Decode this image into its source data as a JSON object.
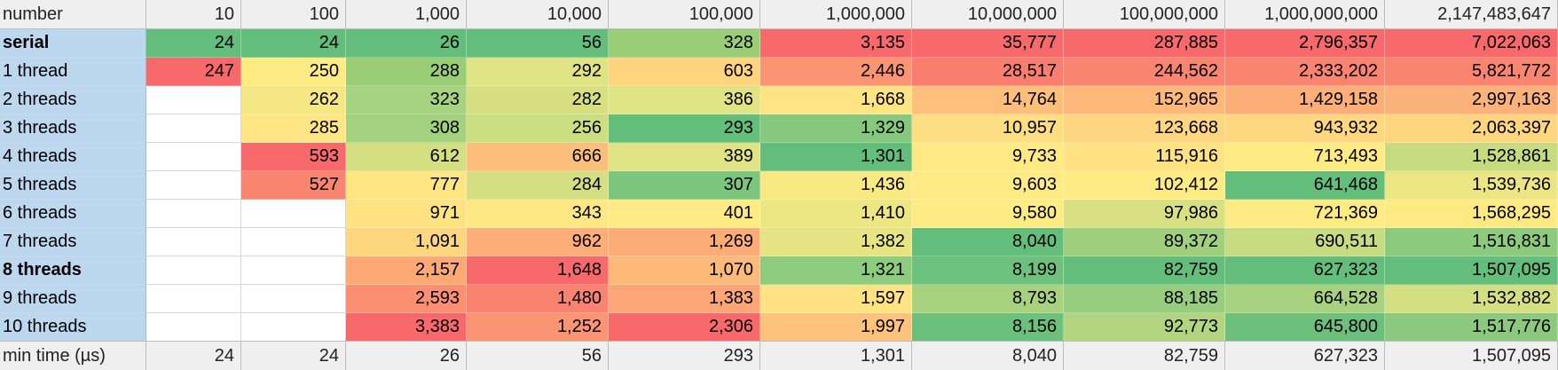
{
  "table": {
    "header_label": "number",
    "columns": [
      "10",
      "100",
      "1,000",
      "10,000",
      "100,000",
      "1,000,000",
      "10,000,000",
      "100,000,000",
      "1,000,000,000",
      "2,147,483,647"
    ],
    "rows": [
      {
        "label": "serial",
        "bold": true,
        "values": [
          "24",
          "24",
          "26",
          "56",
          "328",
          "3,135",
          "35,777",
          "287,885",
          "2,796,357",
          "7,022,063"
        ],
        "colors": [
          "#63BE7B",
          "#63BE7B",
          "#63BE7B",
          "#63BE7B",
          "#9ACE76",
          "#F8696B",
          "#F8696B",
          "#F8696B",
          "#F8696B",
          "#F8696B"
        ]
      },
      {
        "label": "1 thread",
        "bold": false,
        "values": [
          "247",
          "250",
          "288",
          "292",
          "603",
          "2,446",
          "28,517",
          "244,562",
          "2,333,202",
          "5,821,772"
        ],
        "colors": [
          "#F8696B",
          "#FFEB84",
          "#9ACE76",
          "#E0E383",
          "#FFD47F",
          "#FA9473",
          "#F97E6F",
          "#F98570",
          "#F98570",
          "#F98570"
        ]
      },
      {
        "label": "2 threads",
        "bold": false,
        "values": [
          "",
          "262",
          "323",
          "282",
          "386",
          "1,668",
          "14,764",
          "152,965",
          "1,429,158",
          "2,997,163"
        ],
        "colors": [
          "#FFFFFF",
          "#F5E783",
          "#A7D27F",
          "#D7E081",
          "#E0E383",
          "#FFE483",
          "#FDBF7B",
          "#FDB87A",
          "#FCAF78",
          "#FBB27A"
        ]
      },
      {
        "label": "3 threads",
        "bold": false,
        "values": [
          "",
          "285",
          "308",
          "256",
          "293",
          "1,329",
          "10,957",
          "123,668",
          "943,932",
          "2,063,397"
        ],
        "colors": [
          "#FFFFFF",
          "#FFE583",
          "#A3D17E",
          "#CDDD81",
          "#63BE7B",
          "#86C97E",
          "#FEDE82",
          "#FED580",
          "#FED780",
          "#FFD680"
        ]
      },
      {
        "label": "4 threads",
        "bold": false,
        "values": [
          "",
          "593",
          "612",
          "666",
          "389",
          "1,301",
          "9,733",
          "115,916",
          "713,493",
          "1,528,861"
        ],
        "colors": [
          "#FFFFFF",
          "#F8696B",
          "#D3DF81",
          "#FCBF7B",
          "#DFE383",
          "#63BE7B",
          "#FFE984",
          "#FFE282",
          "#FFEB84",
          "#C6DB80"
        ]
      },
      {
        "label": "5 threads",
        "bold": false,
        "values": [
          "",
          "527",
          "777",
          "284",
          "307",
          "1,436",
          "9,603",
          "102,412",
          "641,468",
          "1,539,736"
        ],
        "colors": [
          "#FFFFFF",
          "#F98470",
          "#FFE683",
          "#D3DF81",
          "#7BC67C",
          "#F9E983",
          "#FFEB84",
          "#FFEB84",
          "#63BE7B",
          "#EBE683"
        ]
      },
      {
        "label": "6 threads",
        "bold": false,
        "values": [
          "",
          "",
          "971",
          "343",
          "401",
          "1,410",
          "9,580",
          "97,986",
          "721,369",
          "1,568,295"
        ],
        "colors": [
          "#FFFFFF",
          "#FFFFFF",
          "#FFE382",
          "#FFE883",
          "#FFEB84",
          "#ECE683",
          "#FFEB84",
          "#D9E082",
          "#FFEB84",
          "#FFE983"
        ]
      },
      {
        "label": "7 threads",
        "bold": false,
        "values": [
          "",
          "",
          "1,091",
          "962",
          "1,269",
          "1,382",
          "8,040",
          "89,372",
          "690,511",
          "1,516,831"
        ],
        "colors": [
          "#FFFFFF",
          "#FFFFFF",
          "#FFD680",
          "#FDAD77",
          "#FCAD77",
          "#E6E483",
          "#63BE7B",
          "#A0CF7E",
          "#C7DC81",
          "#8CCA7E"
        ]
      },
      {
        "label": "8 threads",
        "bold": true,
        "values": [
          "",
          "",
          "2,157",
          "1,648",
          "1,070",
          "1,321",
          "8,199",
          "82,759",
          "627,323",
          "1,507,095"
        ],
        "colors": [
          "#FFFFFF",
          "#FFFFFF",
          "#FCA976",
          "#F8696B",
          "#FDB97A",
          "#8DCB7E",
          "#6DC17C",
          "#63BE7B",
          "#63BE7B",
          "#63BE7B"
        ]
      },
      {
        "label": "9 threads",
        "bold": false,
        "values": [
          "",
          "",
          "2,593",
          "1,480",
          "1,383",
          "1,597",
          "8,793",
          "88,185",
          "664,528",
          "1,532,882"
        ],
        "colors": [
          "#FFFFFF",
          "#FFFFFF",
          "#FA8F72",
          "#F98370",
          "#FCA576",
          "#FFE383",
          "#A9D27F",
          "#97CD7E",
          "#A8D27F",
          "#D4DF82"
        ]
      },
      {
        "label": "10 threads",
        "bold": false,
        "values": [
          "",
          "",
          "3,383",
          "1,252",
          "2,306",
          "1,997",
          "8,156",
          "92,773",
          "645,800",
          "1,517,776"
        ],
        "colors": [
          "#FFFFFF",
          "#FFFFFF",
          "#F8696B",
          "#FA9473",
          "#F8696B",
          "#FDC37C",
          "#6BC17C",
          "#B3D57F",
          "#6CC07C",
          "#8BCA7E"
        ]
      }
    ],
    "footer": {
      "label": "min time (µs)",
      "values": [
        "24",
        "24",
        "26",
        "56",
        "293",
        "1,301",
        "8,040",
        "82,759",
        "627,323",
        "1,507,095"
      ]
    }
  }
}
